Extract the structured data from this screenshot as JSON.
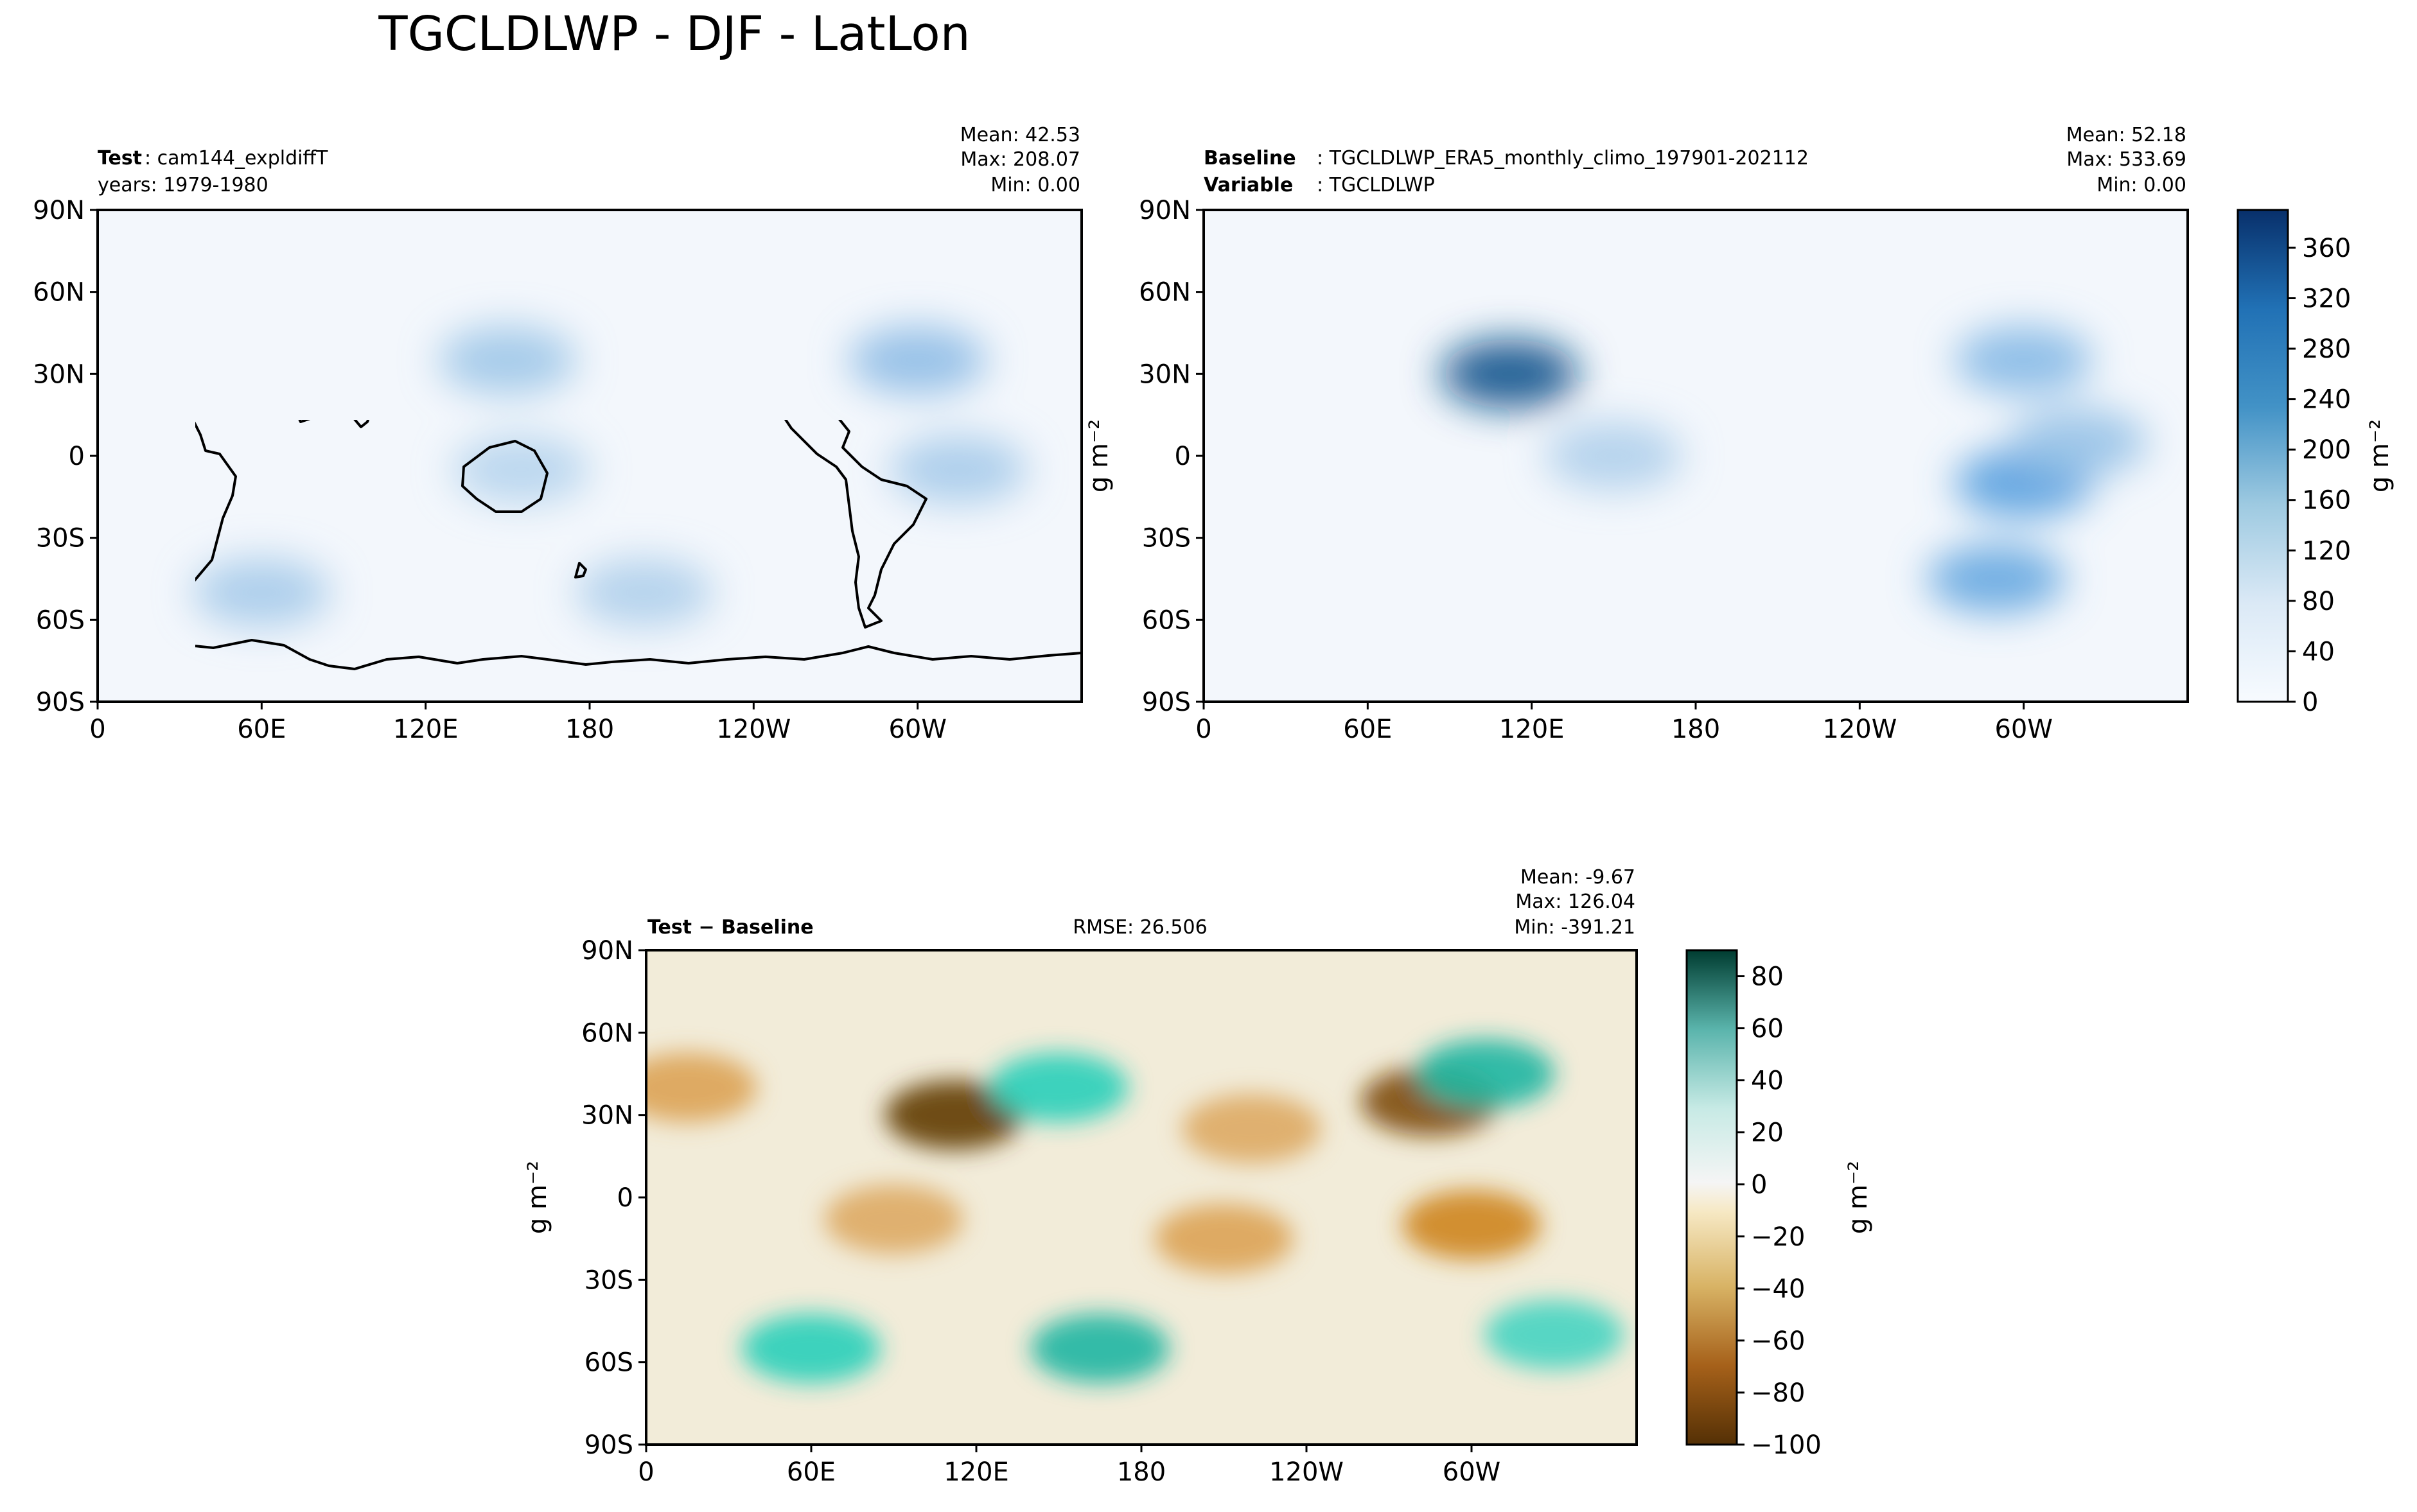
{
  "figure_title": "TGCLDLWP - DJF - LatLon",
  "colors": {
    "ocean_light": "#f3f7fc",
    "land_outline": "#000000"
  },
  "chart_data": [
    {
      "type": "heatmap",
      "panel": "test",
      "title_label": "Test",
      "title_value": ": cam144_expldiffT",
      "years_label": "years: 1979-1980",
      "stats": {
        "mean": "Mean: 42.53",
        "max": "Max: 208.07",
        "min": "Min:  0.00"
      },
      "xticks": [
        "0",
        "60E",
        "120E",
        "180",
        "120W",
        "60W"
      ],
      "yticks": [
        "90N",
        "60N",
        "30N",
        "0",
        "30S",
        "60S",
        "90S"
      ],
      "xlim": [
        0,
        360
      ],
      "ylim": [
        -90,
        90
      ],
      "colormap": "Blues",
      "hotspots": [
        {
          "lon": 300,
          "lat": 35,
          "value": 130
        },
        {
          "lon": 150,
          "lat": 35,
          "value": 110
        },
        {
          "lon": 60,
          "lat": -50,
          "value": 100
        },
        {
          "lon": 200,
          "lat": -50,
          "value": 90
        },
        {
          "lon": 315,
          "lat": -5,
          "value": 100
        },
        {
          "lon": 155,
          "lat": -5,
          "value": 80
        }
      ]
    },
    {
      "type": "heatmap",
      "panel": "baseline",
      "title_label": "Baseline",
      "title_value": ": TGCLDLWP_ERA5_monthly_climo_197901-202112",
      "var_label": "Variable",
      "var_value": ": TGCLDLWP",
      "stats": {
        "mean": "Mean: 52.18",
        "max": "Max: 533.69",
        "min": "Min:  0.00"
      },
      "ylabel": "g m⁻²",
      "xticks": [
        "0",
        "60E",
        "120E",
        "180",
        "120W",
        "60W"
      ],
      "yticks": [
        "90N",
        "60N",
        "30N",
        "0",
        "30S",
        "60S",
        "90S"
      ],
      "xlim": [
        0,
        360
      ],
      "ylim": [
        -90,
        90
      ],
      "colormap": "Blues",
      "hotspots": [
        {
          "lon": 112,
          "lat": 30,
          "value": 360
        },
        {
          "lon": 300,
          "lat": -10,
          "value": 200
        },
        {
          "lon": 290,
          "lat": -45,
          "value": 180
        },
        {
          "lon": 300,
          "lat": 35,
          "value": 140
        },
        {
          "lon": 320,
          "lat": 5,
          "value": 120
        },
        {
          "lon": 150,
          "lat": 0,
          "value": 90
        }
      ]
    },
    {
      "type": "heatmap",
      "panel": "diff",
      "title_label": "Test − Baseline",
      "rmse": "RMSE: 26.506",
      "stats": {
        "mean": "Mean: -9.67",
        "max": "Max: 126.04",
        "min": "Min: -391.21"
      },
      "ylabel": "g m⁻²",
      "xticks": [
        "0",
        "60E",
        "120E",
        "180",
        "120W",
        "60W"
      ],
      "yticks": [
        "90N",
        "60N",
        "30N",
        "0",
        "30S",
        "60S",
        "90S"
      ],
      "xlim": [
        0,
        360
      ],
      "ylim": [
        -90,
        90
      ],
      "colormap": "BrBG",
      "hotspots": [
        {
          "lon": 285,
          "lat": 35,
          "value": -90
        },
        {
          "lon": 112,
          "lat": 30,
          "value": -100
        },
        {
          "lon": 300,
          "lat": -10,
          "value": -60
        },
        {
          "lon": 150,
          "lat": 40,
          "value": 60
        },
        {
          "lon": 305,
          "lat": 45,
          "value": 70
        },
        {
          "lon": 60,
          "lat": -55,
          "value": 60
        },
        {
          "lon": 165,
          "lat": -55,
          "value": 70
        },
        {
          "lon": 330,
          "lat": -50,
          "value": 50
        },
        {
          "lon": 90,
          "lat": -8,
          "value": -35
        },
        {
          "lon": 210,
          "lat": -15,
          "value": -40
        },
        {
          "lon": 220,
          "lat": 25,
          "value": -35
        },
        {
          "lon": 15,
          "lat": 40,
          "value": -40
        }
      ]
    }
  ],
  "colorbar_blues": {
    "ticks": [
      "0",
      "40",
      "80",
      "120",
      "160",
      "200",
      "240",
      "280",
      "320",
      "360"
    ],
    "range": [
      0,
      390
    ],
    "label": "g m⁻²"
  },
  "colorbar_diff": {
    "ticks": [
      "80",
      "60",
      "40",
      "20",
      "0",
      "−20",
      "−40",
      "−60",
      "−80",
      "−100"
    ],
    "range": [
      -100,
      90
    ],
    "label": "g m⁻²"
  }
}
